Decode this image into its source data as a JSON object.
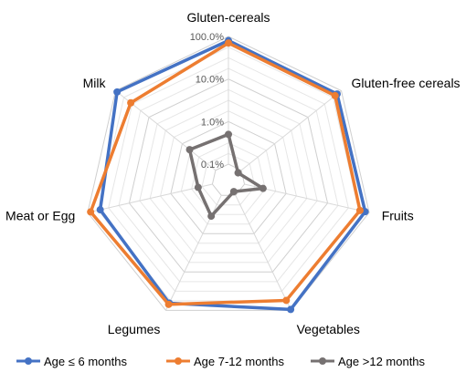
{
  "chart_data": {
    "type": "radar",
    "scale": "log",
    "rlim": [
      0.1,
      100
    ],
    "ticks": [
      "0.1%",
      "1.0%",
      "10.0%",
      "100.0%"
    ],
    "grid": true,
    "legend_position": "bottom",
    "categories": [
      "Gluten-cereals",
      "Gluten-free cereals",
      "Fruits",
      "Vegetables",
      "Legumes",
      "Meat or Egg",
      "Milk"
    ],
    "series": [
      {
        "name": "Age ≤ 6 months",
        "color": "#4472C4",
        "values": [
          80,
          75,
          80,
          95,
          65,
          50,
          90
        ]
      },
      {
        "name": "Age 7-12 months",
        "color": "#ED7D31",
        "values": [
          70,
          65,
          60,
          55,
          70,
          85,
          35
        ]
      },
      {
        "name": "Age >12 months",
        "color": "#767171",
        "values": [
          0.5,
          0.08,
          0.28,
          0.08,
          0.35,
          0.22,
          0.6
        ]
      }
    ]
  }
}
